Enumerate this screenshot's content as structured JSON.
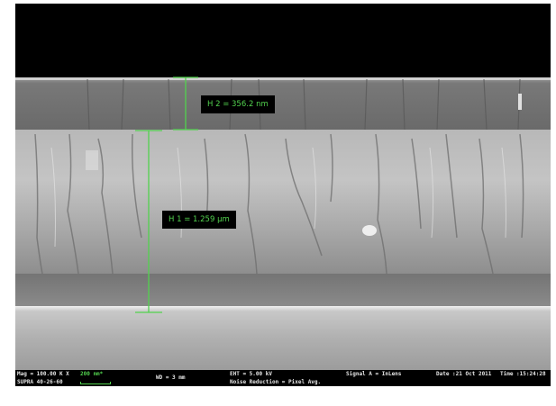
{
  "image": {
    "description_colors": {
      "background": "#000000",
      "overlay_green": "#52d24e",
      "info_text": "#e6e6e6"
    }
  },
  "measurements": [
    {
      "label": "H 2 = 356.2 nm"
    },
    {
      "label": "H 1 = 1.259 µm"
    }
  ],
  "info_bar": {
    "mag": "Mag = 100.00 K X",
    "scale": "200 nm*",
    "instrument": "SUPRA 40-26-60",
    "wd": "WD =   3 mm",
    "eht": "EHT =   5.00 kV",
    "noise": "Noise Reduction = Pixel Avg.",
    "signal": "Signal A = InLens",
    "date": "Date :21 Oct 2011",
    "time": "Time :15:24:28"
  }
}
